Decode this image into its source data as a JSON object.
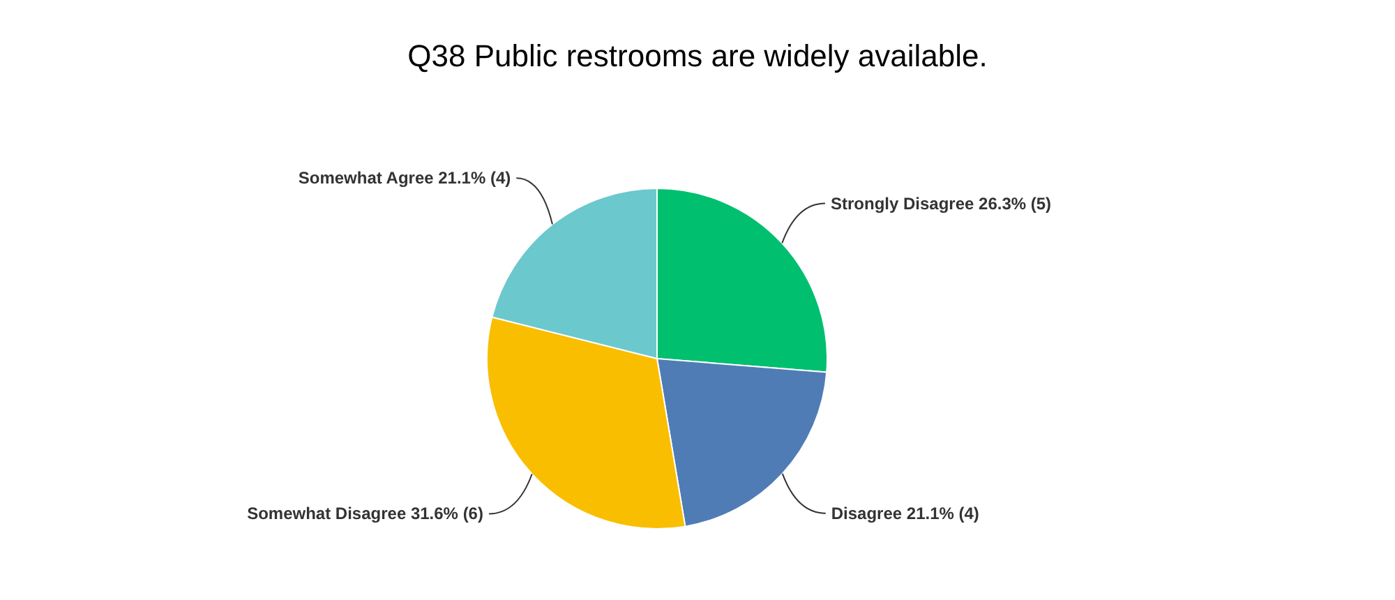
{
  "chart_data": {
    "type": "pie",
    "title": "Q38 Public restrooms are widely available.",
    "categories": [
      "Strongly Disagree",
      "Disagree",
      "Somewhat Disagree",
      "Somewhat Agree"
    ],
    "values": [
      26.3,
      21.1,
      31.6,
      21.1
    ],
    "value_labels": [
      "26.3% (5)",
      "21.1% (4)",
      "31.6% (6)",
      "21.1% (4)"
    ],
    "colors": [
      "#00bf6f",
      "#507cb6",
      "#f9be00",
      "#6bc8cd"
    ],
    "legend": false
  }
}
